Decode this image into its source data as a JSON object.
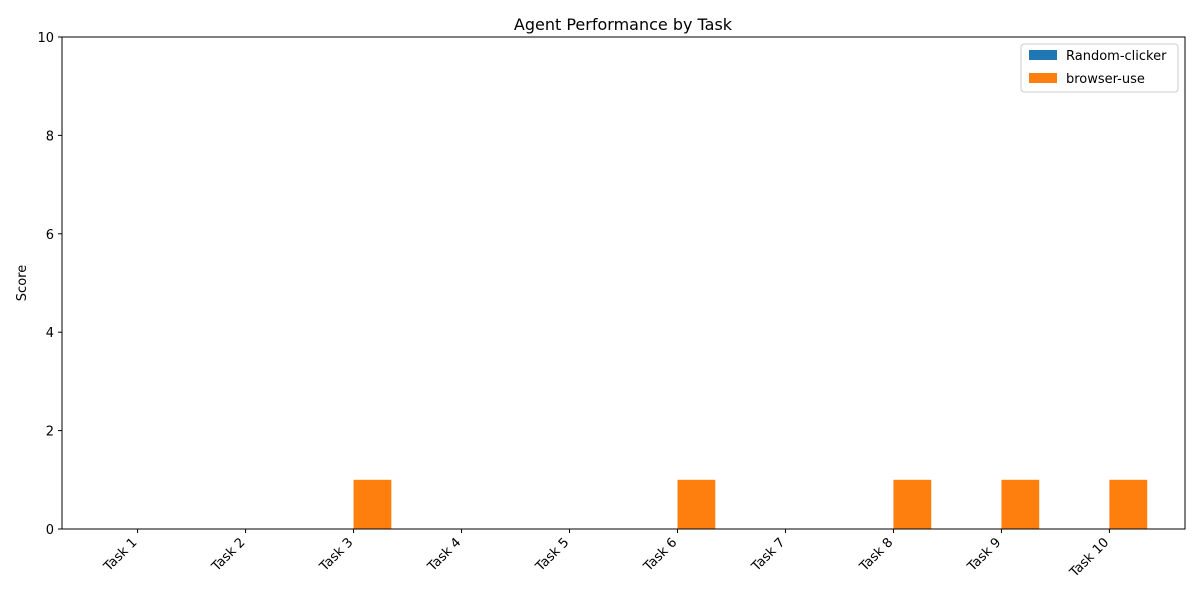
{
  "chart_data": {
    "type": "bar",
    "title": "Agent Performance by Task",
    "xlabel": "",
    "ylabel": "Score",
    "categories": [
      "Task 1",
      "Task 2",
      "Task 3",
      "Task 4",
      "Task 5",
      "Task 6",
      "Task 7",
      "Task 8",
      "Task 9",
      "Task 10"
    ],
    "series": [
      {
        "name": "Random-clicker",
        "color": "#1f77b4",
        "values": [
          0,
          0,
          0,
          0,
          0,
          0,
          0,
          0,
          0,
          0
        ]
      },
      {
        "name": "browser-use",
        "color": "#ff7f0e",
        "values": [
          0,
          0,
          1,
          0,
          0,
          1,
          0,
          1,
          1,
          1
        ]
      }
    ],
    "ylim": [
      0,
      10
    ],
    "yticks": [
      0,
      2,
      4,
      6,
      8,
      10
    ],
    "grid": false,
    "legend_position": "top-right"
  }
}
